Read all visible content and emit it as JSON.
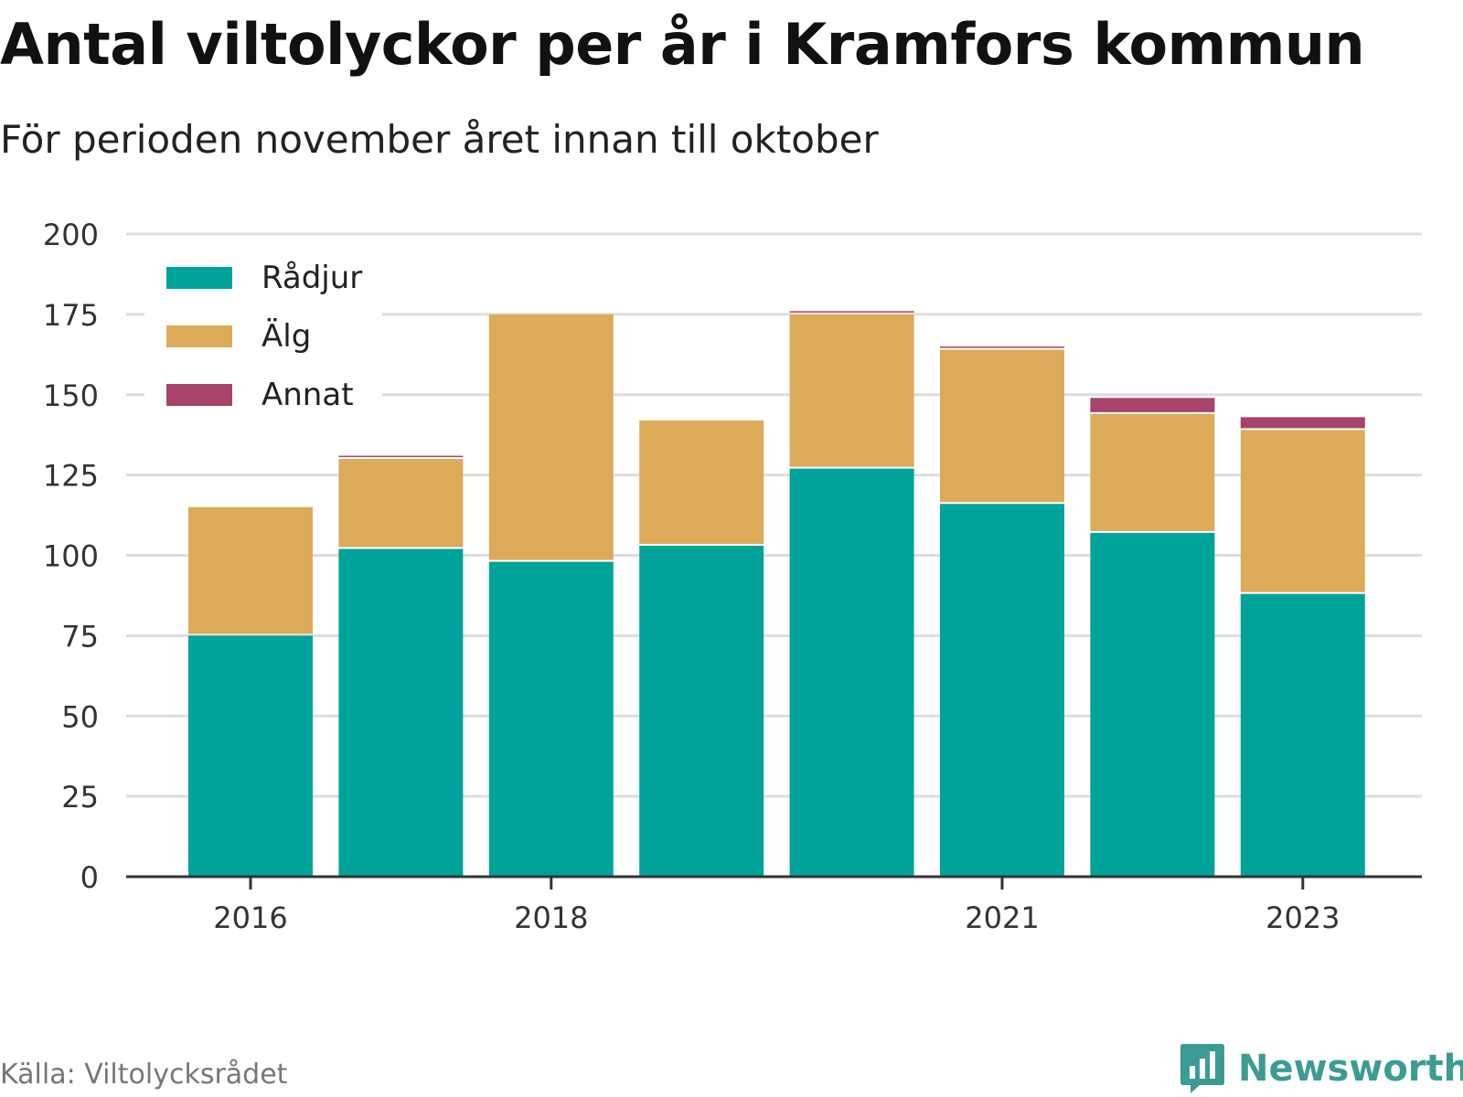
{
  "header": {
    "title": "Antal viltolyckor per år i Kramfors kommun",
    "subtitle": "För perioden november året innan till oktober"
  },
  "footer": {
    "source": "Källa: Viltolycksrådet",
    "brand": "Newsworthy",
    "brand_icon": "bar-chart-speech-bubble-icon"
  },
  "colors": {
    "radjur": "#00a39a",
    "alg": "#dcab59",
    "annat": "#a9436b",
    "grid": "#dddddd",
    "axis": "#333333",
    "brand": "#3c9c94"
  },
  "chart_data": {
    "type": "bar",
    "stacked": true,
    "title": "Antal viltolyckor per år i Kramfors kommun",
    "subtitle": "För perioden november året innan till oktober",
    "categories": [
      "2016",
      "2017",
      "2018",
      "2019",
      "2020",
      "2021",
      "2022",
      "2023"
    ],
    "x_tick_labels": [
      "2016",
      "",
      "2018",
      "",
      "",
      "2021",
      "",
      "2023"
    ],
    "series": [
      {
        "name": "Rådjur",
        "values": [
          75,
          102,
          98,
          103,
          127,
          116,
          107,
          88
        ]
      },
      {
        "name": "Älg",
        "values": [
          40,
          28,
          77,
          39,
          48,
          48,
          37,
          51
        ]
      },
      {
        "name": "Annat",
        "values": [
          0,
          1,
          0,
          0,
          1,
          1,
          5,
          4
        ]
      }
    ],
    "y_ticks": [
      0,
      25,
      50,
      75,
      100,
      125,
      150,
      175,
      200
    ],
    "ylim": [
      0,
      200
    ],
    "xlabel": "",
    "ylabel": "",
    "grid": true,
    "legend_position": "top-left"
  }
}
